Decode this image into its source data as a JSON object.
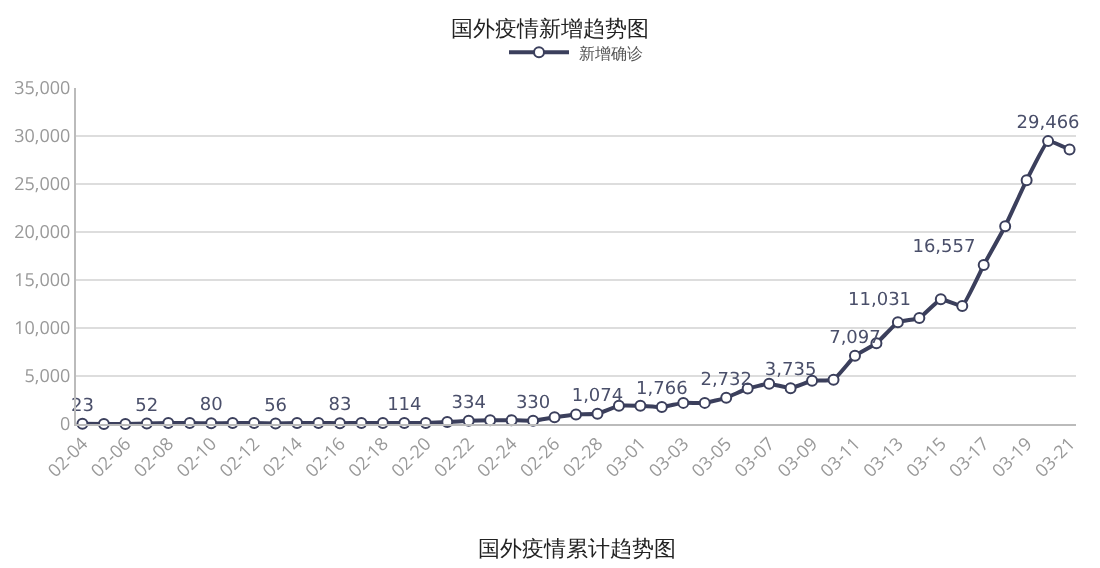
{
  "chart_data": {
    "type": "line",
    "title": "国外疫情新增趋势图",
    "categories": [
      "02-04",
      null,
      "02-06",
      null,
      "02-08",
      null,
      "02-10",
      null,
      "02-12",
      null,
      "02-14",
      null,
      "02-16",
      null,
      "02-18",
      null,
      "02-20",
      null,
      "02-22",
      null,
      "02-24",
      null,
      "02-26",
      null,
      "02-28",
      null,
      "03-01",
      null,
      "03-03",
      null,
      "03-05",
      null,
      "03-07",
      null,
      "03-09",
      null,
      "03-11",
      null,
      "03-13",
      null,
      "03-15",
      null,
      "03-17",
      null,
      "03-19",
      null,
      "03-21"
    ],
    "series": [
      {
        "name": "新增确诊",
        "color": "#3b3f5c",
        "values": [
          23,
          0,
          0,
          52,
          100,
          100,
          80,
          100,
          100,
          56,
          100,
          100,
          83,
          100,
          100,
          114,
          100,
          200,
          334,
          400,
          400,
          330,
          700,
          1000,
          1074,
          1900,
          1900,
          1766,
          2200,
          2200,
          2732,
          3700,
          4200,
          3735,
          4500,
          4600,
          7097,
          8400,
          10600,
          11031,
          13000,
          12300,
          16557,
          20600,
          25400,
          29466,
          28600
        ],
        "value_labels": [
          "23",
          null,
          null,
          "52",
          null,
          null,
          "80",
          null,
          null,
          "56",
          null,
          null,
          "83",
          null,
          null,
          "114",
          null,
          null,
          "334",
          null,
          null,
          "330",
          null,
          null,
          "1,074",
          null,
          null,
          "1,766",
          null,
          null,
          "2,732",
          null,
          null,
          "3,735",
          null,
          null,
          "7,097",
          null,
          null,
          "11,031",
          null,
          null,
          "16,557",
          null,
          null,
          "29,466",
          null
        ]
      }
    ],
    "ylim": [
      0,
      35000
    ],
    "yticks": [
      0,
      {
        "value": 5000,
        "label": "5,000"
      },
      {
        "value": 10000,
        "label": "10,000"
      },
      {
        "value": 15000,
        "label": "15,000"
      },
      {
        "value": 20000,
        "label": "20,000"
      },
      {
        "value": 25000,
        "label": "25,000"
      },
      {
        "value": 30000,
        "label": "30,000"
      },
      {
        "value": 35000,
        "label": "35,000"
      }
    ],
    "grid": "y",
    "legend": "top",
    "marker": "circle",
    "line_style": "solid",
    "annotations": [
      "国外疫情累计趋势图"
    ]
  }
}
